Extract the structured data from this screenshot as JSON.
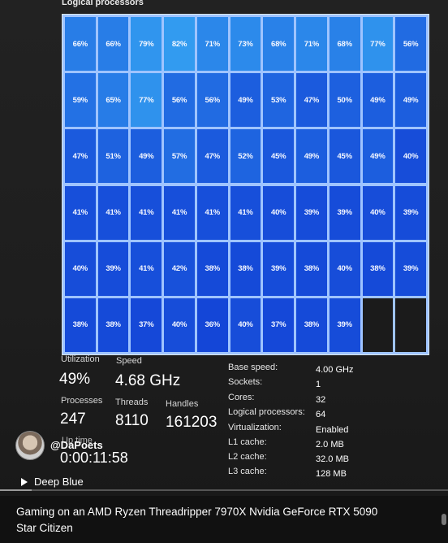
{
  "section_title": "Logical processors",
  "logical_processors": [
    [
      "66%",
      "66%",
      "79%",
      "82%",
      "71%",
      "73%",
      "68%",
      "71%",
      "68%",
      "77%",
      "56%"
    ],
    [
      "59%",
      "65%",
      "77%",
      "56%",
      "56%",
      "49%",
      "53%",
      "47%",
      "50%",
      "49%",
      "49%"
    ],
    [
      "47%",
      "51%",
      "49%",
      "57%",
      "47%",
      "52%",
      "45%",
      "49%",
      "45%",
      "49%",
      "40%"
    ],
    [
      "41%",
      "41%",
      "41%",
      "41%",
      "41%",
      "41%",
      "40%",
      "39%",
      "39%",
      "40%",
      "39%"
    ],
    [
      "40%",
      "39%",
      "41%",
      "42%",
      "38%",
      "38%",
      "39%",
      "38%",
      "40%",
      "38%",
      "39%"
    ],
    [
      "38%",
      "38%",
      "37%",
      "40%",
      "36%",
      "40%",
      "37%",
      "38%",
      "39%"
    ]
  ],
  "stats": {
    "utilization_label": "Utilization",
    "utilization_value": "49%",
    "speed_label": "Speed",
    "speed_value": "4.68 GHz",
    "processes_label": "Processes",
    "processes_value": "247",
    "threads_label": "Threads",
    "threads_value": "8110",
    "handles_label": "Handles",
    "handles_value": "161203",
    "uptime_label": "Up time",
    "uptime_value": "0:00:11:58"
  },
  "specs": [
    {
      "label": "Base speed:",
      "value": "4.00 GHz"
    },
    {
      "label": "Sockets:",
      "value": "1"
    },
    {
      "label": "Cores:",
      "value": "32"
    },
    {
      "label": "Logical processors:",
      "value": "64"
    },
    {
      "label": "Virtualization:",
      "value": "Enabled"
    },
    {
      "label": "L1 cache:",
      "value": "2.0 MB"
    },
    {
      "label": "L2 cache:",
      "value": "32.0 MB"
    },
    {
      "label": "L3 cache:",
      "value": "128 MB"
    }
  ],
  "channel": "@DaPoets",
  "track": "Deep Blue",
  "caption_line1": "Gaming on an AMD Ryzen Threadripper 7970X   Nvidia GeForce RTX 5090",
  "caption_line2": "Star Citizen",
  "colors": {
    "cell_blue": "#1b52e0",
    "grid_border": "#9fc4ff"
  }
}
